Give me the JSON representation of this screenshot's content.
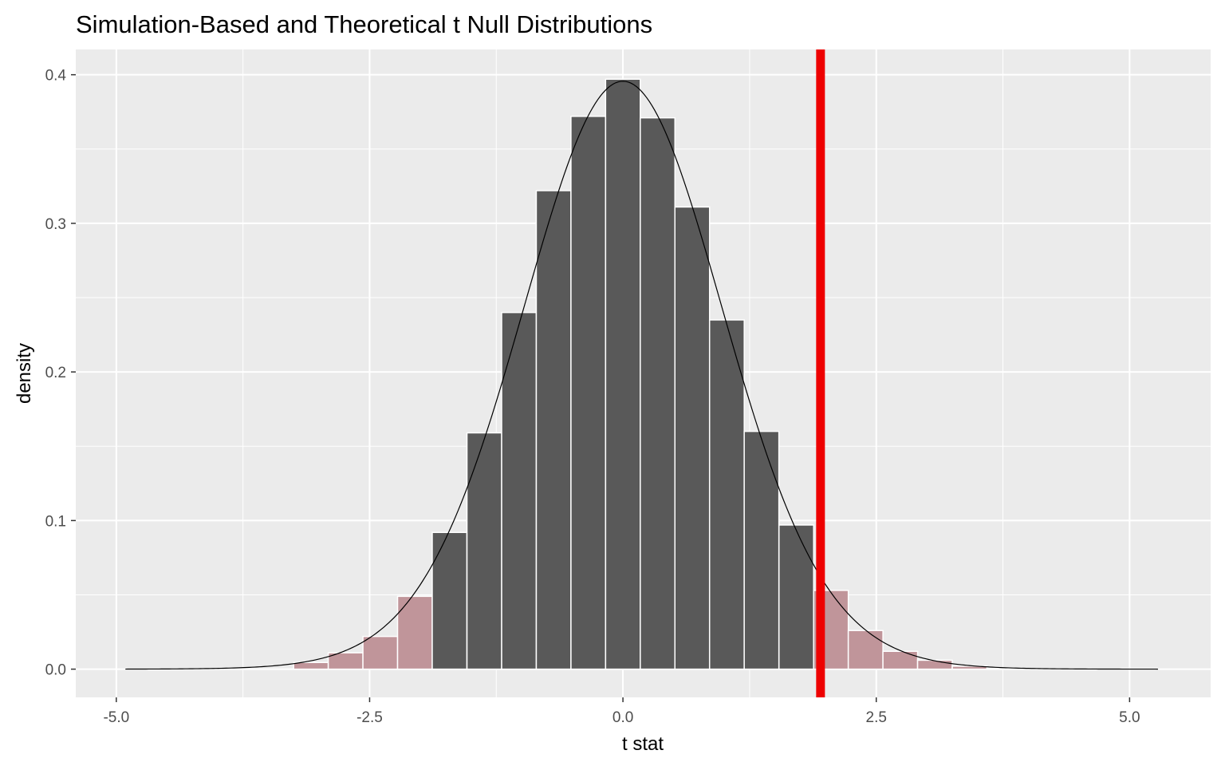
{
  "chart_data": {
    "type": "bar",
    "title": "Simulation-Based and Theoretical t Null Distributions",
    "xlabel": "t stat",
    "ylabel": "density",
    "xlim": [
      -5.4,
      5.8
    ],
    "ylim": [
      -0.019,
      0.417
    ],
    "x_ticks": [
      -5.0,
      -2.5,
      0.0,
      2.5,
      5.0
    ],
    "x_tick_labels": [
      "-5.0",
      "-2.5",
      "0.0",
      "2.5",
      "5.0"
    ],
    "y_ticks": [
      0.0,
      0.1,
      0.2,
      0.3,
      0.4
    ],
    "y_tick_labels": [
      "0.0",
      "0.1",
      "0.2",
      "0.3",
      "0.4"
    ],
    "grid": true,
    "bin_width": 0.3421,
    "bins": [
      {
        "center": -3.079,
        "value": 0.0045,
        "shaded": true
      },
      {
        "center": -2.737,
        "value": 0.011,
        "shaded": true
      },
      {
        "center": -2.395,
        "value": 0.022,
        "shaded": true
      },
      {
        "center": -2.053,
        "value": 0.049,
        "shaded": true
      },
      {
        "center": -1.711,
        "value": 0.092,
        "shaded": false
      },
      {
        "center": -1.368,
        "value": 0.159,
        "shaded": false
      },
      {
        "center": -1.026,
        "value": 0.24,
        "shaded": false
      },
      {
        "center": -0.684,
        "value": 0.322,
        "shaded": false
      },
      {
        "center": -0.342,
        "value": 0.372,
        "shaded": false
      },
      {
        "center": 0.0,
        "value": 0.397,
        "shaded": false
      },
      {
        "center": 0.342,
        "value": 0.371,
        "shaded": false
      },
      {
        "center": 0.684,
        "value": 0.311,
        "shaded": false
      },
      {
        "center": 1.026,
        "value": 0.235,
        "shaded": false
      },
      {
        "center": 1.368,
        "value": 0.16,
        "shaded": false
      },
      {
        "center": 1.711,
        "value": 0.097,
        "shaded": false
      },
      {
        "center": 2.053,
        "value": 0.053,
        "shaded": true
      },
      {
        "center": 2.395,
        "value": 0.026,
        "shaded": true
      },
      {
        "center": 2.737,
        "value": 0.012,
        "shaded": true
      },
      {
        "center": 3.079,
        "value": 0.006,
        "shaded": true
      },
      {
        "center": 3.421,
        "value": 0.002,
        "shaded": true
      },
      {
        "center": 3.763,
        "value": 0.0008,
        "shaded": true
      },
      {
        "center": 4.105,
        "value": 0.0004,
        "shaded": true
      },
      {
        "center": 4.447,
        "value": 0.0003,
        "shaded": true
      }
    ],
    "theoretical_curve": {
      "distribution": "t",
      "df": 30,
      "x_range": [
        -4.91,
        5.28
      ]
    },
    "observed_stat": 1.95,
    "colors": {
      "panel_background": "#ebebeb",
      "grid": "#ffffff",
      "bar_fill": "#595959",
      "shaded_bar_fill": "#c0959a",
      "bar_outline": "#ffffff",
      "curve": "#000000",
      "observed_line": "#ee0000"
    }
  }
}
